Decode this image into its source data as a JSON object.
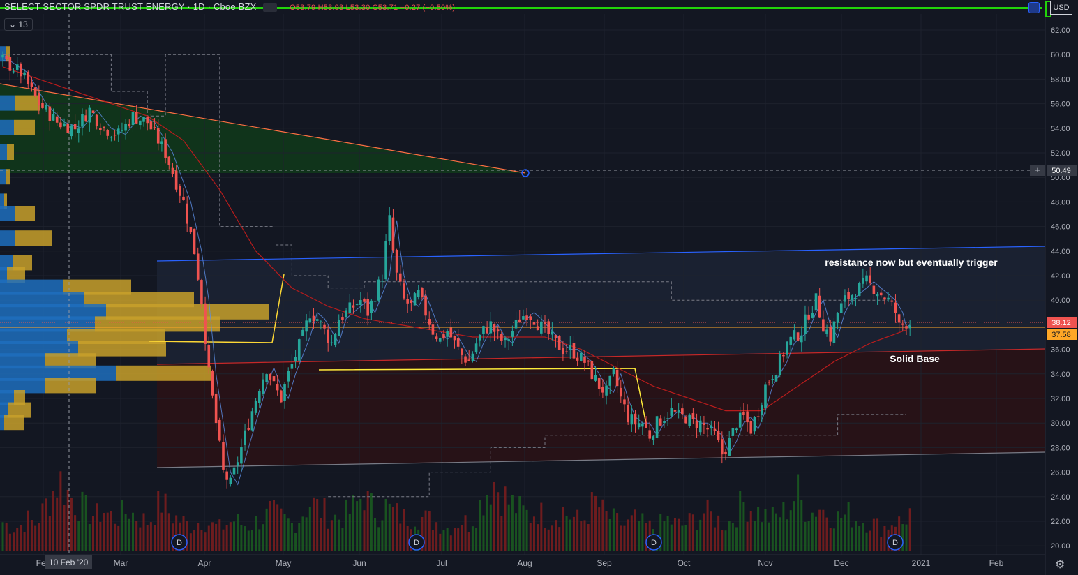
{
  "header": {
    "title": "SELECT SECTOR SPDR TRUST ENERGY · 1D · Cboe BZX",
    "ohlc": "O53.79 H53.93 L53.30 C53.71 −0.27 (−0.50%)",
    "indicator_badge": "13",
    "currency": "USD"
  },
  "crosshair": {
    "x_label": "10 Feb '20",
    "price_tag": "50.49"
  },
  "chart_data": {
    "type": "candlestick",
    "title": "SELECT SECTOR SPDR TRUST ENERGY · 1D · Cboe BZX",
    "y_ticks": [
      "62.00",
      "60.00",
      "58.00",
      "56.00",
      "54.00",
      "52.00",
      "50.00",
      "48.00",
      "46.00",
      "44.00",
      "42.00",
      "40.00",
      "38.00",
      "36.00",
      "34.00",
      "32.00",
      "30.00",
      "28.00",
      "26.00",
      "24.00",
      "22.00",
      "20.00"
    ],
    "x_ticks": [
      "Feb",
      "Mar",
      "Apr",
      "May",
      "Jun",
      "Jul",
      "Aug",
      "Sep",
      "Oct",
      "Nov",
      "Dec",
      "2021",
      "Feb"
    ],
    "ylim": [
      19.5,
      63.5
    ],
    "last_price": "38.12",
    "ma_price": "37.58",
    "annotations": [
      "resistance now but eventually trigger",
      "Solid Base"
    ],
    "dividend_markers": [
      "D",
      "D",
      "D",
      "D"
    ],
    "price_path": [
      [
        0,
        59.5
      ],
      [
        5,
        58.5
      ],
      [
        10,
        56
      ],
      [
        15,
        54.5
      ],
      [
        20,
        54
      ],
      [
        24,
        55.5
      ],
      [
        28,
        54
      ],
      [
        32,
        53.5
      ],
      [
        36,
        55
      ],
      [
        40,
        54.5
      ],
      [
        45,
        52
      ],
      [
        50,
        48
      ],
      [
        53,
        44
      ],
      [
        55,
        40
      ],
      [
        57,
        34
      ],
      [
        59,
        30
      ],
      [
        61,
        26
      ],
      [
        63,
        25
      ],
      [
        65,
        27
      ],
      [
        67,
        29
      ],
      [
        69,
        31
      ],
      [
        71,
        33
      ],
      [
        73,
        34.5
      ],
      [
        75,
        33
      ],
      [
        77,
        32
      ],
      [
        79,
        34
      ],
      [
        81,
        35.5
      ],
      [
        83,
        37
      ],
      [
        85,
        39
      ],
      [
        87,
        38.5
      ],
      [
        89,
        37.5
      ],
      [
        91,
        36.5
      ],
      [
        93,
        38.5
      ],
      [
        95,
        39
      ],
      [
        97,
        39.5
      ],
      [
        99,
        40
      ],
      [
        101,
        39
      ],
      [
        103,
        40.5
      ],
      [
        105,
        42
      ],
      [
        106,
        44.5
      ],
      [
        107,
        46.5
      ],
      [
        108,
        44
      ],
      [
        109,
        42
      ],
      [
        111,
        40
      ],
      [
        113,
        39.5
      ],
      [
        115,
        40.5
      ],
      [
        117,
        39
      ],
      [
        119,
        37.5
      ],
      [
        121,
        36.8
      ],
      [
        123,
        37.5
      ],
      [
        125,
        36.5
      ],
      [
        127,
        35.5
      ],
      [
        129,
        35
      ],
      [
        131,
        36.5
      ],
      [
        133,
        37.5
      ],
      [
        135,
        38
      ],
      [
        137,
        37
      ],
      [
        139,
        36.5
      ],
      [
        141,
        37.5
      ],
      [
        143,
        38.5
      ],
      [
        145,
        39
      ],
      [
        147,
        38.5
      ],
      [
        149,
        37.8
      ],
      [
        151,
        37.2
      ],
      [
        153,
        36.5
      ],
      [
        155,
        36
      ],
      [
        157,
        36
      ],
      [
        159,
        35.5
      ],
      [
        161,
        35
      ],
      [
        163,
        34
      ],
      [
        165,
        33
      ],
      [
        167,
        32.5
      ],
      [
        169,
        34
      ],
      [
        171,
        32
      ],
      [
        173,
        30.5
      ],
      [
        175,
        30
      ],
      [
        177,
        30
      ],
      [
        179,
        29
      ],
      [
        181,
        30
      ],
      [
        183,
        30.5
      ],
      [
        185,
        31
      ],
      [
        187,
        30.5
      ],
      [
        189,
        30.5
      ],
      [
        191,
        30
      ],
      [
        193,
        30
      ],
      [
        195,
        29.5
      ],
      [
        197,
        29
      ],
      [
        199,
        27.5
      ],
      [
        201,
        28.5
      ],
      [
        203,
        30
      ],
      [
        205,
        30.5
      ],
      [
        207,
        29.5
      ],
      [
        209,
        31
      ],
      [
        211,
        33
      ],
      [
        213,
        34
      ],
      [
        215,
        35
      ],
      [
        217,
        36.5
      ],
      [
        219,
        37
      ],
      [
        221,
        37.5
      ],
      [
        223,
        39
      ],
      [
        225,
        40
      ],
      [
        227,
        38
      ],
      [
        229,
        37
      ],
      [
        231,
        39
      ],
      [
        233,
        40
      ],
      [
        235,
        40.5
      ],
      [
        237,
        41
      ],
      [
        239,
        41.5
      ],
      [
        241,
        41
      ],
      [
        243,
        40.5
      ],
      [
        245,
        40
      ],
      [
        247,
        39
      ],
      [
        248,
        37.8
      ],
      [
        250,
        38.2
      ],
      [
        251,
        38.12
      ]
    ],
    "ma_long_path": [
      [
        0,
        59
      ],
      [
        10,
        58
      ],
      [
        20,
        57
      ],
      [
        30,
        56
      ],
      [
        40,
        55
      ],
      [
        50,
        53
      ],
      [
        60,
        49
      ],
      [
        70,
        44
      ],
      [
        80,
        41
      ],
      [
        90,
        39.5
      ],
      [
        100,
        38.5
      ],
      [
        110,
        38
      ],
      [
        120,
        37.5
      ],
      [
        130,
        37
      ],
      [
        140,
        37
      ],
      [
        150,
        37
      ],
      [
        160,
        36
      ],
      [
        170,
        34.5
      ],
      [
        180,
        33
      ],
      [
        190,
        32
      ],
      [
        200,
        31
      ],
      [
        210,
        31
      ],
      [
        220,
        33
      ],
      [
        230,
        35
      ],
      [
        240,
        36.5
      ],
      [
        250,
        37.58
      ]
    ],
    "volume": [
      30,
      28,
      26,
      24,
      25,
      27,
      30,
      32,
      30,
      28,
      35,
      40,
      48,
      55,
      62,
      70,
      72,
      65,
      60,
      55,
      50,
      48,
      45,
      42,
      40,
      38,
      36,
      40,
      42,
      38,
      36,
      34,
      35,
      38,
      40,
      42,
      38,
      36,
      34,
      32,
      30,
      34,
      40,
      46,
      50,
      45,
      40,
      36,
      34,
      32,
      30,
      28,
      26,
      28,
      30,
      32,
      30,
      28,
      26,
      25,
      24,
      26,
      28,
      30,
      32,
      30,
      28,
      27,
      26,
      28,
      30,
      32,
      34,
      36,
      40,
      38,
      36,
      34,
      32,
      30,
      28,
      30,
      34,
      40,
      45,
      50,
      48,
      45,
      42,
      40,
      38,
      36,
      35,
      34,
      36,
      38,
      40,
      44,
      48,
      55,
      60,
      50,
      45,
      42,
      40,
      44,
      46,
      42,
      40,
      38,
      36,
      34,
      35,
      36,
      38,
      36,
      34,
      33,
      32,
      30
    ]
  }
}
